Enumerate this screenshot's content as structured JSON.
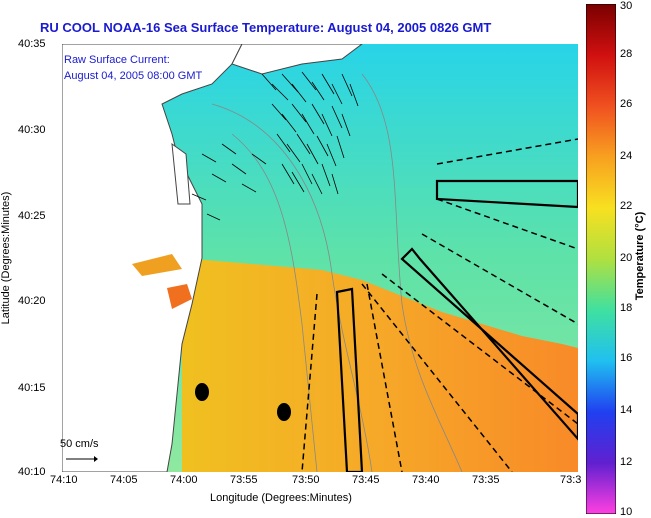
{
  "title": "RU COOL  NOAA-16  Sea Surface Temperature:  August 04, 2005 0826 GMT",
  "legend": {
    "current_label_line1": "Raw Surface Current:",
    "current_label_line2": "August 04, 2005 08:00 GMT",
    "scale_label": "50 cm/s"
  },
  "axes": {
    "xlabel": "Longitude (Degrees:Minutes)",
    "ylabel": "Latitude (Degrees:Minutes)",
    "x_ticks": [
      "74:10",
      "74:05",
      "74:00",
      "73:55",
      "73:50",
      "73:45",
      "73:40",
      "73:35",
      "73:3"
    ],
    "y_ticks": [
      "40:35",
      "40:30",
      "40:25",
      "40:20",
      "40:15",
      "40:10"
    ]
  },
  "colorbar": {
    "label": "Temperature (°C)",
    "ticks": [
      "30",
      "28",
      "26",
      "24",
      "22",
      "20",
      "18",
      "16",
      "14",
      "12",
      "10"
    ]
  },
  "colors": {
    "title": "#1a1ad0",
    "water_cold": "#3fd8d8",
    "water_warm": "#f0a020",
    "land": "#ffffff"
  }
}
